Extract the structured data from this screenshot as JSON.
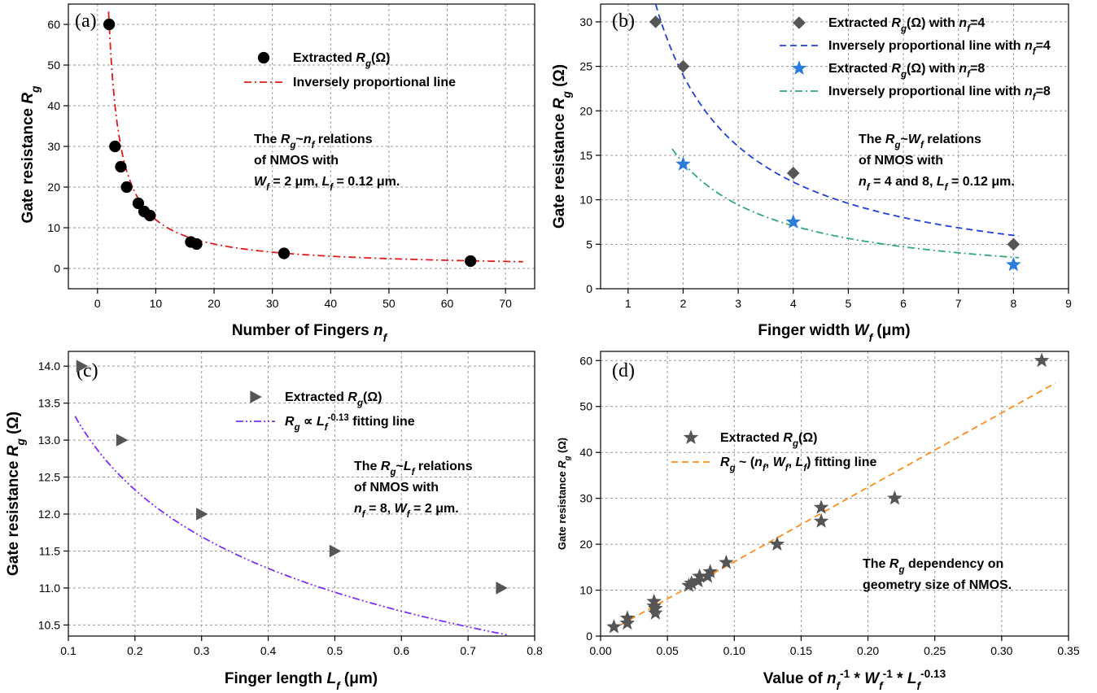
{
  "chart_data": [
    {
      "type": "scatter",
      "panel_label": "(a)",
      "xlabel_parts": [
        "Number of Fingers ",
        "n",
        "f"
      ],
      "ylabel_parts": [
        "Gate resistance ",
        "R",
        "g"
      ],
      "xlim": [
        -5,
        75
      ],
      "ylim": [
        -5,
        65
      ],
      "xticks": [
        0,
        10,
        20,
        30,
        40,
        50,
        60,
        70
      ],
      "yticks": [
        0,
        10,
        20,
        30,
        40,
        50,
        60
      ],
      "legend": [
        "Extracted R_g(Ω)",
        "Inversely proportional line"
      ],
      "annotation": [
        "The R_g~n_f relations",
        "of NMOS with",
        "W_f = 2 μm, L_f = 0.12 μm."
      ],
      "series": [
        {
          "kind": "points",
          "color": "#000000",
          "marker": "circle",
          "x": [
            2,
            3,
            4,
            5,
            7,
            8,
            9,
            16,
            17,
            32,
            64
          ],
          "y": [
            60,
            30,
            25,
            20,
            16,
            14,
            13,
            6.5,
            6,
            3.7,
            1.8
          ]
        },
        {
          "kind": "curve",
          "color": "#e31a1c",
          "dash": "dashdot",
          "formula": "inverse",
          "k": 120,
          "range": [
            1.9,
            73
          ]
        }
      ]
    },
    {
      "type": "scatter",
      "panel_label": "(b)",
      "xlabel_parts": [
        "Finger width ",
        "W",
        "f",
        " (μm)"
      ],
      "ylabel_parts": [
        "Gate resistance ",
        "R",
        "g",
        " (Ω)"
      ],
      "xlim": [
        0.5,
        9
      ],
      "ylim": [
        0,
        32
      ],
      "xticks": [
        1,
        2,
        3,
        4,
        5,
        6,
        7,
        8,
        9
      ],
      "yticks": [
        0,
        5,
        10,
        15,
        20,
        25,
        30
      ],
      "legend": [
        "Extracted R_g(Ω) with n_f=4",
        "Inversely proportional line with n_f=4",
        "Extracted R_g(Ω) with n_f=8",
        "Inversely proportional line with n_f=8"
      ],
      "annotation": [
        "The R_g~W_f relations",
        "of NMOS with",
        "n_f = 4 and 8, L_f = 0.12 μm."
      ],
      "series": [
        {
          "kind": "points",
          "color": "#555555",
          "marker": "diamond",
          "x": [
            1.5,
            2,
            4,
            8
          ],
          "y": [
            30,
            25,
            13,
            5
          ]
        },
        {
          "kind": "curve",
          "color": "#1f3fd8",
          "dash": "dash",
          "formula": "inverse",
          "k": 48,
          "range": [
            1.4,
            8.1
          ]
        },
        {
          "kind": "points",
          "color": "#2b7bdc",
          "marker": "star",
          "x": [
            2,
            4,
            8
          ],
          "y": [
            14,
            7.5,
            2.7
          ]
        },
        {
          "kind": "curve",
          "color": "#2fa872",
          "dash": "dashdot",
          "formula": "inverse",
          "k": 28.3,
          "range": [
            1.8,
            8.1
          ]
        }
      ]
    },
    {
      "type": "scatter",
      "panel_label": "(c)",
      "xlabel_parts": [
        "Finger length ",
        "L",
        "f",
        " (μm)"
      ],
      "ylabel_parts": [
        "Gate resistance ",
        "R",
        "g",
        " (Ω)"
      ],
      "xlim": [
        0.1,
        0.8
      ],
      "ylim": [
        10.35,
        14.2
      ],
      "xticks": [
        0.1,
        0.2,
        0.3,
        0.4,
        0.5,
        0.6,
        0.7,
        0.8
      ],
      "yticks": [
        10.5,
        11.0,
        11.5,
        12.0,
        12.5,
        13.0,
        13.5,
        14.0
      ],
      "legend": [
        "Extracted R_g(Ω)",
        "R_g ∝ L_f^-0.13 fitting line"
      ],
      "annotation": [
        "The R_g~L_f relations",
        "of NMOS with",
        "n_f = 8, W_f = 2 μm."
      ],
      "series": [
        {
          "kind": "points",
          "color": "#555555",
          "marker": "triangle-right",
          "x": [
            0.12,
            0.18,
            0.3,
            0.5,
            0.75
          ],
          "y": [
            14,
            13,
            12,
            11.5,
            11
          ]
        },
        {
          "kind": "curve",
          "color": "#7b2ff7",
          "dash": "dashdotdot",
          "formula": "power",
          "k": 10.0,
          "p": -0.13,
          "range": [
            0.11,
            0.76
          ]
        }
      ]
    },
    {
      "type": "scatter",
      "panel_label": "(d)",
      "xlabel_parts": [
        "Value of ",
        "n",
        "f",
        "-1",
        " * ",
        "W",
        "f",
        "-1",
        " * ",
        "L",
        "f",
        "-0.13"
      ],
      "ylabel_parts": [
        "Gate resistance ",
        "R",
        "g",
        " (Ω)"
      ],
      "xlim": [
        0,
        0.35
      ],
      "ylim": [
        0,
        62
      ],
      "xticks": [
        0.0,
        0.05,
        0.1,
        0.15,
        0.2,
        0.25,
        0.3,
        0.35
      ],
      "xtick_labels": [
        "0.00",
        "0.05",
        "0.10",
        "0.15",
        "0.20",
        "0.25",
        "0.30",
        "0.35"
      ],
      "yticks": [
        0,
        10,
        20,
        30,
        40,
        50,
        60
      ],
      "legend": [
        "Extracted R_g(Ω)",
        "R_g ~ (n_f, W_f, L_f) fitting line"
      ],
      "annotation": [
        "The R_g dependency on",
        "geometry size of NMOS."
      ],
      "series": [
        {
          "kind": "points",
          "color": "#555555",
          "marker": "star",
          "x": [
            0.01,
            0.02,
            0.02,
            0.04,
            0.04,
            0.041,
            0.041,
            0.066,
            0.068,
            0.073,
            0.074,
            0.08,
            0.082,
            0.094,
            0.132,
            0.165,
            0.165,
            0.22,
            0.33
          ],
          "y": [
            2,
            2.8,
            3.9,
            6.5,
            7.5,
            6,
            5,
            11,
            11.5,
            12,
            13,
            13,
            14,
            16,
            20,
            25,
            28,
            30,
            60
          ]
        },
        {
          "kind": "curve",
          "color": "#ff8c1a",
          "dash": "dash",
          "formula": "linear",
          "a": 162,
          "b": 0,
          "range": [
            0.008,
            0.34
          ]
        }
      ]
    }
  ]
}
